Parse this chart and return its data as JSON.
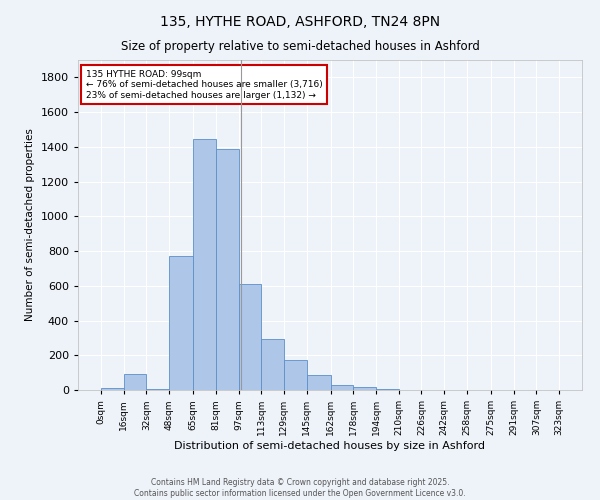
{
  "title": "135, HYTHE ROAD, ASHFORD, TN24 8PN",
  "subtitle": "Size of property relative to semi-detached houses in Ashford",
  "xlabel": "Distribution of semi-detached houses by size in Ashford",
  "ylabel": "Number of semi-detached properties",
  "bar_edges": [
    0,
    16,
    32,
    48,
    65,
    81,
    97,
    113,
    129,
    145,
    162,
    178,
    194,
    210,
    226,
    242,
    258,
    275,
    291,
    307,
    323
  ],
  "bar_labels": [
    "0sqm",
    "16sqm",
    "32sqm",
    "48sqm",
    "65sqm",
    "81sqm",
    "97sqm",
    "113sqm",
    "129sqm",
    "145sqm",
    "162sqm",
    "178sqm",
    "194sqm",
    "210sqm",
    "226sqm",
    "242sqm",
    "258sqm",
    "275sqm",
    "291sqm",
    "307sqm",
    "323sqm"
  ],
  "bar_heights": [
    10,
    95,
    5,
    770,
    1445,
    1385,
    610,
    295,
    175,
    85,
    30,
    18,
    5,
    2,
    1,
    1,
    0,
    1,
    0,
    0
  ],
  "bar_color": "#aec6e8",
  "bar_edgecolor": "#5b8fc9",
  "property_line_x": 99,
  "annotation_title": "135 HYTHE ROAD: 99sqm",
  "annotation_line1": "← 76% of semi-detached houses are smaller (3,716)",
  "annotation_line2": "23% of semi-detached houses are larger (1,132) →",
  "annotation_box_color": "#ffffff",
  "annotation_box_edgecolor": "#cc0000",
  "ylim": [
    0,
    1900
  ],
  "yticks": [
    0,
    200,
    400,
    600,
    800,
    1000,
    1200,
    1400,
    1600,
    1800
  ],
  "background_color": "#eef2f9",
  "grid_color": "#ffffff",
  "footer_line1": "Contains HM Land Registry data © Crown copyright and database right 2025.",
  "footer_line2": "Contains public sector information licensed under the Open Government Licence v3.0."
}
